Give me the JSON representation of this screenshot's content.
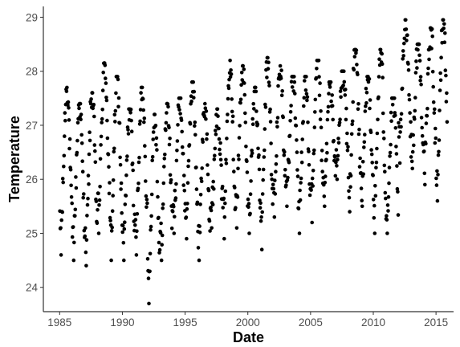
{
  "chart_data": {
    "type": "scatter",
    "title": "",
    "xlabel": "Date",
    "ylabel": "Temperature",
    "xlim": [
      1983.7,
      2016.4
    ],
    "ylim": [
      23.55,
      29.2
    ],
    "x_ticks": [
      1985,
      1990,
      1995,
      2000,
      2005,
      2010,
      2015
    ],
    "x_tick_labels": [
      "1985",
      "1990",
      "1995",
      "2000",
      "2005",
      "2010",
      "2015"
    ],
    "y_ticks": [
      24,
      25,
      26,
      27,
      28,
      29
    ],
    "y_tick_labels": [
      "24",
      "25",
      "26",
      "27",
      "28",
      "29"
    ],
    "grid": false,
    "legend": "none",
    "point_color": "#000000",
    "series": [
      {
        "name": "",
        "x_start": 1985.0,
        "x_end": 2015.9,
        "seasonal_cycles": [
          {
            "year": 1985,
            "min": 24.6,
            "max": 27.7
          },
          {
            "year": 1986,
            "min": 24.5,
            "max": 27.4
          },
          {
            "year": 1987,
            "min": 24.4,
            "max": 27.6
          },
          {
            "year": 1988,
            "min": 25.0,
            "max": 28.15
          },
          {
            "year": 1989,
            "min": 24.5,
            "max": 27.9
          },
          {
            "year": 1990,
            "min": 24.5,
            "max": 27.3
          },
          {
            "year": 1991,
            "min": 24.6,
            "max": 27.7
          },
          {
            "year": 1992,
            "min": 23.7,
            "max": 27.2
          },
          {
            "year": 1993,
            "min": 24.5,
            "max": 27.4
          },
          {
            "year": 1994,
            "min": 25.0,
            "max": 27.5
          },
          {
            "year": 1995,
            "min": 24.9,
            "max": 27.8
          },
          {
            "year": 1996,
            "min": 24.5,
            "max": 27.4
          },
          {
            "year": 1997,
            "min": 25.1,
            "max": 27.3
          },
          {
            "year": 1998,
            "min": 24.9,
            "max": 28.2
          },
          {
            "year": 1999,
            "min": 25.1,
            "max": 28.1
          },
          {
            "year": 2000,
            "min": 25.0,
            "max": 27.7
          },
          {
            "year": 2001,
            "min": 24.7,
            "max": 28.25
          },
          {
            "year": 2002,
            "min": 25.3,
            "max": 28.1
          },
          {
            "year": 2003,
            "min": 25.5,
            "max": 27.9
          },
          {
            "year": 2004,
            "min": 25.0,
            "max": 27.9
          },
          {
            "year": 2005,
            "min": 25.2,
            "max": 28.2
          },
          {
            "year": 2006,
            "min": 25.5,
            "max": 27.8
          },
          {
            "year": 2007,
            "min": 26.0,
            "max": 28.0
          },
          {
            "year": 2008,
            "min": 25.4,
            "max": 28.4
          },
          {
            "year": 2009,
            "min": 25.5,
            "max": 27.9
          },
          {
            "year": 2010,
            "min": 25.0,
            "max": 28.4
          },
          {
            "year": 2011,
            "min": 25.0,
            "max": 27.5
          },
          {
            "year": 2012,
            "min": 26.3,
            "max": 28.95
          },
          {
            "year": 2013,
            "min": 26.2,
            "max": 28.5
          },
          {
            "year": 2014,
            "min": 25.9,
            "max": 28.8
          },
          {
            "year": 2015,
            "min": 25.6,
            "max": 28.95
          }
        ]
      }
    ]
  }
}
